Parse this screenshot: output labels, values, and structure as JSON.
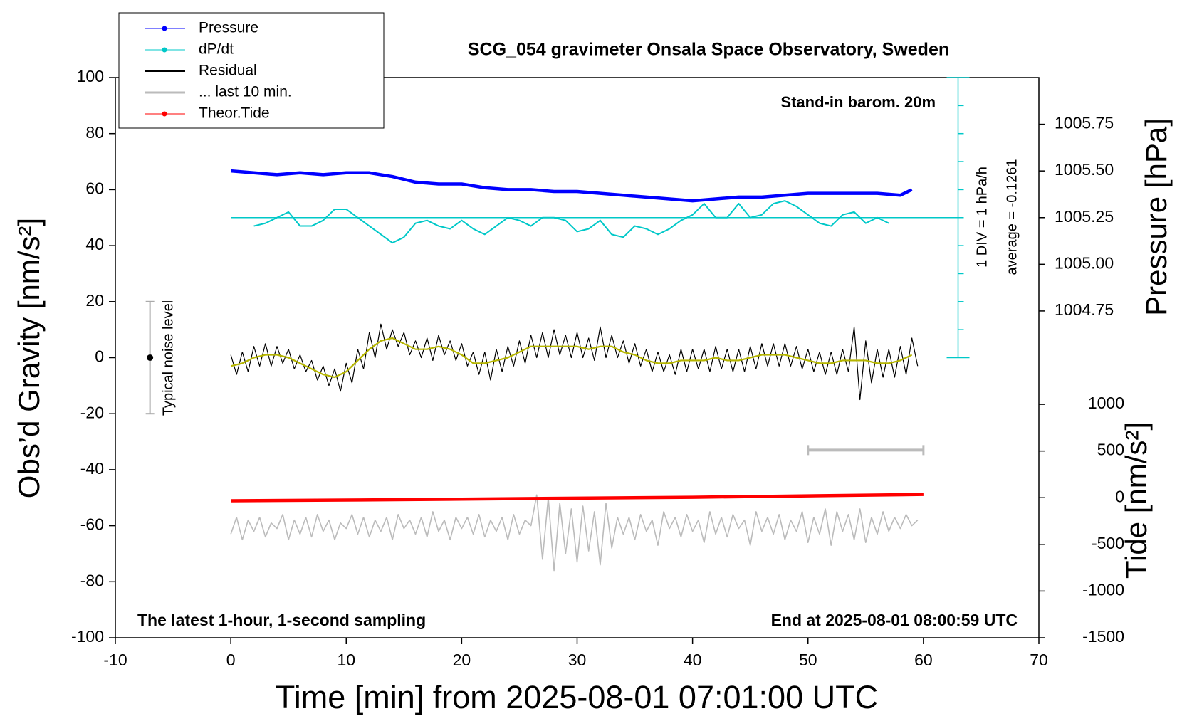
{
  "chart_data": {
    "type": "line",
    "title": "SCG_054 gravimeter Onsala Space Observatory, Sweden",
    "x_label": "Time [min] from 2025-08-01 07:01:00 UTC",
    "y_label": "Obs’d Gravity [nm/s²]",
    "y2_label": "Pressure [hPa]",
    "y3_label": "Tide [nm/s²]",
    "annotations": {
      "barometer": "Stand-in barom. 20m",
      "div": "1 DIV = 1 hPa/h",
      "average": "average = -0.1261",
      "noise": "Typical noise level",
      "sampling": "The latest 1-hour, 1-second sampling",
      "end": "End at 2025-08-01 08:00:59 UTC"
    },
    "xlim": [
      -10,
      70
    ],
    "xticks": [
      -10,
      0,
      10,
      20,
      30,
      40,
      50,
      60,
      70
    ],
    "ylim": [
      -100,
      100
    ],
    "yticks": [
      -100,
      -80,
      -60,
      -40,
      -20,
      0,
      20,
      40,
      60,
      80,
      100
    ],
    "y2lim": [
      1003,
      1006
    ],
    "y2ticks": [
      {
        "value": 1004.75,
        "label": "1004.75"
      },
      {
        "value": 1005,
        "label": "1005.00"
      },
      1005.25,
      {
        "value": 1005.5,
        "label": "1005.50"
      },
      1005.75
    ],
    "y3lim": [
      -1500,
      4500
    ],
    "y3ticks": [
      -1500,
      -1000,
      -500,
      0,
      500,
      1000
    ],
    "legend": "upper left",
    "series": [
      {
        "name": "Pressure",
        "color": "#0000ff",
        "axis": "y2",
        "x": [
          0,
          2,
          4,
          6,
          8,
          10,
          12,
          14,
          16,
          18,
          20,
          22,
          24,
          26,
          28,
          30,
          32,
          34,
          36,
          38,
          40,
          42,
          44,
          46,
          48,
          50,
          52,
          54,
          56,
          58,
          59
        ],
        "values": [
          1005.5,
          1005.49,
          1005.48,
          1005.49,
          1005.48,
          1005.49,
          1005.49,
          1005.47,
          1005.44,
          1005.43,
          1005.43,
          1005.41,
          1005.4,
          1005.4,
          1005.39,
          1005.39,
          1005.38,
          1005.37,
          1005.36,
          1005.35,
          1005.34,
          1005.35,
          1005.36,
          1005.36,
          1005.37,
          1005.38,
          1005.38,
          1005.38,
          1005.38,
          1005.37,
          1005.4
        ]
      },
      {
        "name": "dP/dt",
        "color": "#00c8c8",
        "axis": "y",
        "x": [
          2,
          3,
          4,
          5,
          6,
          7,
          8,
          9,
          10,
          11,
          12,
          13,
          14,
          15,
          16,
          17,
          18,
          19,
          20,
          21,
          22,
          23,
          24,
          25,
          26,
          27,
          28,
          29,
          30,
          31,
          32,
          33,
          34,
          35,
          36,
          37,
          38,
          39,
          40,
          41,
          42,
          43,
          44,
          45,
          46,
          47,
          48,
          49,
          50,
          51,
          52,
          53,
          54,
          55,
          56,
          57
        ],
        "values": [
          47,
          48,
          50,
          52,
          47,
          47,
          49,
          53,
          53,
          50,
          47,
          44,
          41,
          43,
          48,
          49,
          47,
          46,
          49,
          46,
          44,
          47,
          50,
          49,
          47,
          50,
          50,
          49,
          45,
          46,
          49,
          44,
          43,
          47,
          46,
          44,
          46,
          49,
          51,
          55,
          50,
          50,
          55,
          50,
          51,
          55,
          56,
          54,
          51,
          48,
          47,
          51,
          52,
          48,
          50,
          48
        ]
      },
      {
        "name": "Residual",
        "color": "#000000",
        "axis": "y",
        "x": [
          0,
          0.5,
          1,
          1.5,
          2,
          2.5,
          3,
          3.5,
          4,
          4.5,
          5,
          5.5,
          6,
          6.5,
          7,
          7.5,
          8,
          8.5,
          9,
          9.5,
          10,
          10.5,
          11,
          11.5,
          12,
          12.5,
          13,
          13.5,
          14,
          14.5,
          15,
          15.5,
          16,
          16.5,
          17,
          17.5,
          18,
          18.5,
          19,
          19.5,
          20,
          20.5,
          21,
          21.5,
          22,
          22.5,
          23,
          23.5,
          24,
          24.5,
          25,
          25.5,
          26,
          26.5,
          27,
          27.5,
          28,
          28.5,
          29,
          29.5,
          30,
          30.5,
          31,
          31.5,
          32,
          32.5,
          33,
          33.5,
          34,
          34.5,
          35,
          35.5,
          36,
          36.5,
          37,
          37.5,
          38,
          38.5,
          39,
          39.5,
          40,
          40.5,
          41,
          41.5,
          42,
          42.5,
          43,
          43.5,
          44,
          44.5,
          45,
          45.5,
          46,
          46.5,
          47,
          47.5,
          48,
          48.5,
          49,
          49.5,
          50,
          50.5,
          51,
          51.5,
          52,
          52.5,
          53,
          53.5,
          54,
          54.5,
          55,
          55.5,
          56,
          56.5,
          57,
          57.5,
          58,
          58.5,
          59,
          59.5
        ],
        "values": [
          1,
          -6,
          2,
          -5,
          4,
          -3,
          5,
          -3,
          4,
          -2,
          3,
          -4,
          1,
          -5,
          -1,
          -8,
          -3,
          -10,
          -4,
          -12,
          -2,
          -9,
          3,
          -4,
          9,
          0,
          12,
          3,
          10,
          4,
          9,
          1,
          6,
          0,
          7,
          -1,
          8,
          1,
          6,
          -1,
          5,
          -3,
          2,
          -6,
          2,
          -8,
          3,
          -5,
          4,
          -3,
          6,
          -2,
          8,
          0,
          9,
          0,
          10,
          1,
          8,
          0,
          9,
          0,
          7,
          -1,
          11,
          0,
          8,
          0,
          6,
          -2,
          5,
          -3,
          3,
          -5,
          2,
          -5,
          1,
          -6,
          3,
          -5,
          3,
          -4,
          3,
          -5,
          4,
          -4,
          3,
          -5,
          3,
          -5,
          4,
          -4,
          5,
          -3,
          5,
          -3,
          5,
          -3,
          4,
          -4,
          3,
          -5,
          2,
          -6,
          2,
          -6,
          3,
          -5,
          11,
          -15,
          6,
          -9,
          3,
          -7,
          3,
          -7,
          4,
          -6,
          7,
          -3
        ]
      },
      {
        "name": "... last 10 min.",
        "color": "#bbbbbb",
        "axis": "y",
        "x": [
          0,
          0.5,
          1,
          1.5,
          2,
          2.5,
          3,
          3.5,
          4,
          4.5,
          5,
          5.5,
          6,
          6.5,
          7,
          7.5,
          8,
          8.5,
          9,
          9.5,
          10,
          10.5,
          11,
          11.5,
          12,
          12.5,
          13,
          13.5,
          14,
          14.5,
          15,
          15.5,
          16,
          16.5,
          17,
          17.5,
          18,
          18.5,
          19,
          19.5,
          20,
          20.5,
          21,
          21.5,
          22,
          22.5,
          23,
          23.5,
          24,
          24.5,
          25,
          25.5,
          26,
          26.5,
          27,
          27.5,
          28,
          28.5,
          29,
          29.5,
          30,
          30.5,
          31,
          31.5,
          32,
          32.5,
          33,
          33.5,
          34,
          34.5,
          35,
          35.5,
          36,
          36.5,
          37,
          37.5,
          38,
          38.5,
          39,
          39.5,
          40,
          40.5,
          41,
          41.5,
          42,
          42.5,
          43,
          43.5,
          44,
          44.5,
          45,
          45.5,
          46,
          46.5,
          47,
          47.5,
          48,
          48.5,
          49,
          49.5,
          50,
          50.5,
          51,
          51.5,
          52,
          52.5,
          53,
          53.5,
          54,
          54.5,
          55,
          55.5,
          56,
          56.5,
          57,
          57.5,
          58,
          58.5,
          59,
          59.5
        ],
        "values": [
          -63,
          -57,
          -65,
          -58,
          -62,
          -57,
          -64,
          -59,
          -61,
          -56,
          -65,
          -58,
          -63,
          -57,
          -64,
          -56,
          -62,
          -58,
          -65,
          -59,
          -61,
          -56,
          -63,
          -57,
          -64,
          -58,
          -62,
          -57,
          -65,
          -56,
          -61,
          -58,
          -63,
          -57,
          -64,
          -55,
          -62,
          -58,
          -65,
          -57,
          -61,
          -57,
          -63,
          -56,
          -64,
          -58,
          -62,
          -57,
          -65,
          -56,
          -63,
          -58,
          -60,
          -49,
          -72,
          -50,
          -76,
          -52,
          -70,
          -54,
          -73,
          -53,
          -69,
          -55,
          -74,
          -52,
          -68,
          -57,
          -63,
          -57,
          -65,
          -56,
          -62,
          -58,
          -67,
          -55,
          -61,
          -57,
          -64,
          -56,
          -62,
          -58,
          -66,
          -55,
          -63,
          -57,
          -64,
          -56,
          -61,
          -58,
          -67,
          -55,
          -62,
          -57,
          -63,
          -56,
          -65,
          -58,
          -62,
          -55,
          -66,
          -57,
          -63,
          -54,
          -67,
          -55,
          -62,
          -56,
          -65,
          -54,
          -66,
          -57,
          -63,
          -55,
          -62,
          -57,
          -61,
          -56,
          -60,
          -58
        ]
      },
      {
        "name": "Theor.Tide",
        "color": "#ff0000",
        "axis": "y3",
        "x": [
          0,
          10,
          20,
          30,
          40,
          50,
          60
        ],
        "values": [
          -32,
          -25,
          -15,
          -5,
          5,
          20,
          35
        ]
      }
    ],
    "smoothed": {
      "color": "#b5b500",
      "x": [
        0,
        1,
        2,
        3,
        4,
        5,
        6,
        7,
        8,
        9,
        10,
        11,
        12,
        13,
        14,
        15,
        16,
        17,
        18,
        19,
        20,
        21,
        22,
        23,
        24,
        25,
        26,
        27,
        28,
        29,
        30,
        31,
        32,
        33,
        34,
        35,
        36,
        37,
        38,
        39,
        40,
        41,
        42,
        43,
        44,
        45,
        46,
        47,
        48,
        49,
        50,
        51,
        52,
        53,
        54,
        55,
        56,
        57,
        58,
        59
      ],
      "values": [
        -3,
        -2,
        0,
        1,
        1,
        0,
        -2,
        -4,
        -6,
        -7,
        -5,
        -1,
        3,
        6,
        7,
        5,
        3,
        3,
        4,
        3,
        1,
        -2,
        -2,
        -1,
        0,
        2,
        4,
        4,
        4,
        4,
        4,
        3,
        4,
        4,
        2,
        1,
        -1,
        -2,
        -2,
        -1,
        -1,
        -1,
        0,
        -1,
        -1,
        0,
        1,
        1,
        1,
        0,
        -1,
        -2,
        -2,
        -1,
        -1,
        -1,
        -2,
        -2,
        -1,
        1
      ]
    },
    "dpdt_baseline": 50,
    "dpdt_scale": {
      "x": 63,
      "ticks": [
        0,
        10,
        20,
        30,
        40,
        50,
        60,
        70,
        80,
        90,
        100
      ]
    },
    "noise_bar": {
      "x": -7,
      "center": 0,
      "low": -20,
      "high": 20
    },
    "last10_bar": {
      "x": [
        50,
        60
      ],
      "y": -33
    }
  }
}
